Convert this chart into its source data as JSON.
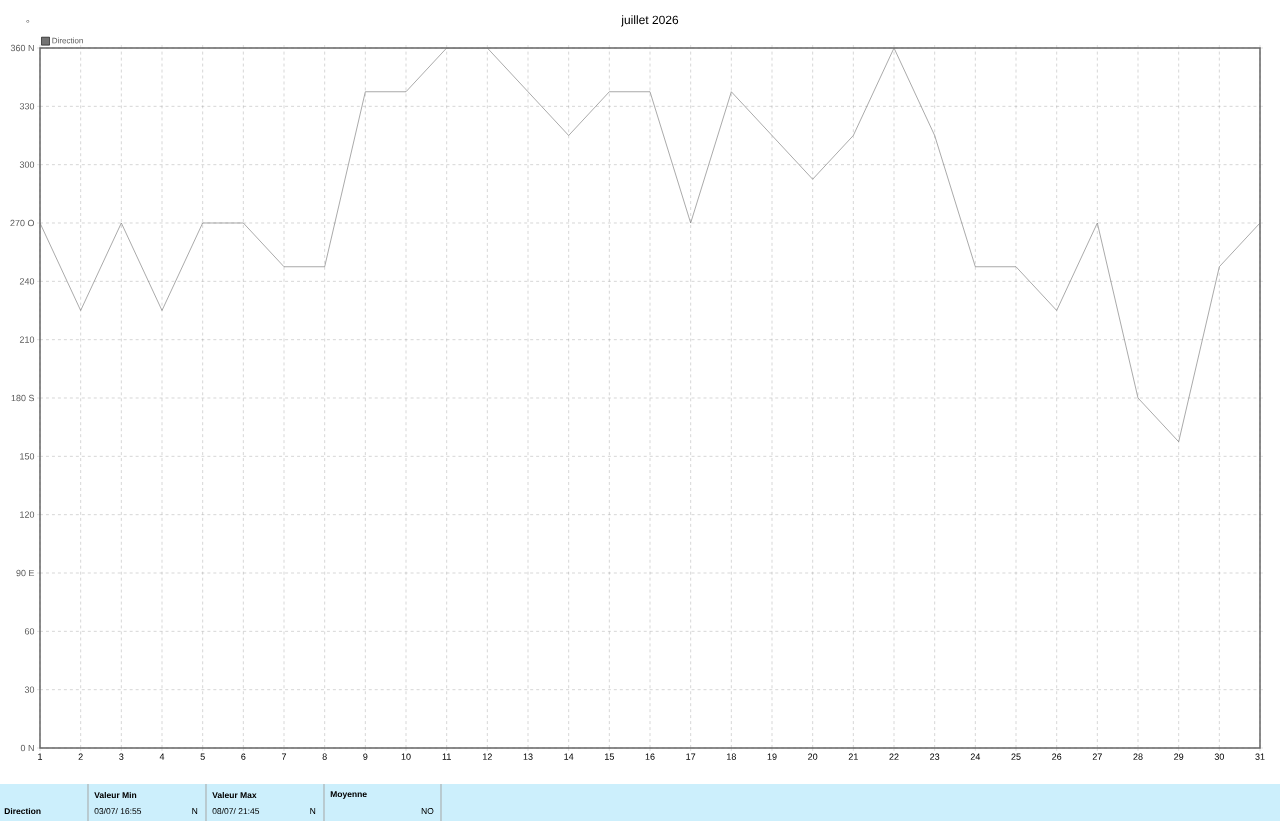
{
  "chart_data": {
    "type": "line",
    "title": "juillet 2026",
    "ylabel": "°",
    "x": [
      1,
      2,
      3,
      4,
      5,
      6,
      7,
      8,
      9,
      10,
      11,
      12,
      13,
      14,
      15,
      16,
      17,
      18,
      19,
      20,
      21,
      22,
      23,
      24,
      25,
      26,
      27,
      28,
      29,
      30,
      31
    ],
    "series": [
      {
        "name": "Direction",
        "color": "#707070",
        "values": [
          270,
          225,
          270,
          225,
          270,
          270,
          247.5,
          247.5,
          337.5,
          337.5,
          360,
          360,
          337.5,
          315,
          337.5,
          337.5,
          270,
          337.5,
          315,
          292.5,
          315,
          360,
          315,
          247.5,
          247.5,
          225,
          270,
          180,
          157.5,
          247.5,
          270
        ]
      }
    ],
    "xlim": [
      1,
      31
    ],
    "xticks": [
      1,
      2,
      3,
      4,
      5,
      6,
      7,
      8,
      9,
      10,
      11,
      12,
      13,
      14,
      15,
      16,
      17,
      18,
      19,
      20,
      21,
      22,
      23,
      24,
      25,
      26,
      27,
      28,
      29,
      30,
      31
    ],
    "ylim": [
      0,
      360
    ],
    "yticks": [
      {
        "value": 0,
        "label": "0  N"
      },
      30,
      60,
      {
        "value": 90,
        "label": "90  E"
      },
      120,
      150,
      {
        "value": 180,
        "label": "180 S"
      },
      210,
      240,
      {
        "value": 270,
        "label": "270 O"
      },
      300,
      330,
      {
        "value": 360,
        "label": "360 N"
      }
    ],
    "grid": true,
    "legend": "top left",
    "marker": "none",
    "line_style": "solid",
    "annotations": [
      "Direction",
      "Valeur Min",
      "03/07/  16:55",
      "N",
      "Valeur Max",
      "08/07/  21:45",
      "N",
      "Moyenne",
      "NO"
    ]
  }
}
